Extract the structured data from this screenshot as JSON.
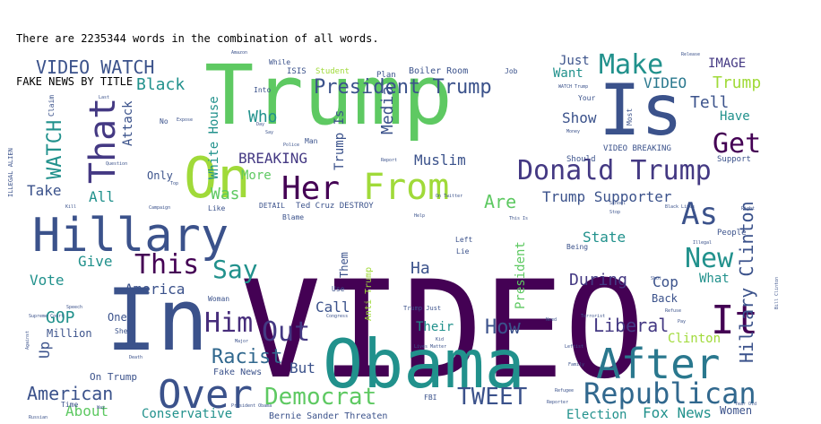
{
  "output": {
    "line1": "There are 2235344 words in the combination of all words.",
    "line2": "FAKE NEWS BY TITLE"
  },
  "wordcloud": {
    "palette": [
      "#440154",
      "#3b528b",
      "#21918c",
      "#5ec962",
      "#a0da39",
      "#fde725"
    ],
    "words": [
      {
        "text": "VIDEO",
        "weight": 100,
        "color": "#440154"
      },
      {
        "text": "Trump",
        "weight": 62,
        "color": "#5ec962"
      },
      {
        "text": "In",
        "weight": 58,
        "color": "#3b528b"
      },
      {
        "text": "Obama",
        "weight": 48,
        "color": "#21918c"
      },
      {
        "text": "Is",
        "weight": 46,
        "color": "#3b528b"
      },
      {
        "text": "On",
        "weight": 40,
        "color": "#a0da39"
      },
      {
        "text": "Hillary",
        "weight": 34,
        "color": "#3b528b"
      },
      {
        "text": "After",
        "weight": 30,
        "color": "#2a788e"
      },
      {
        "text": "Over",
        "weight": 28,
        "color": "#3b528b"
      },
      {
        "text": "That",
        "weight": 28,
        "color": "#443983"
      },
      {
        "text": "From",
        "weight": 26,
        "color": "#a0da39"
      },
      {
        "text": "Donald Trump",
        "weight": 24,
        "color": "#443983"
      },
      {
        "text": "It",
        "weight": 24,
        "color": "#440154"
      },
      {
        "text": "Republican",
        "weight": 22,
        "color": "#31688e"
      },
      {
        "text": "Her",
        "weight": 22,
        "color": "#440154"
      },
      {
        "text": "Democrat",
        "weight": 20,
        "color": "#5ec962"
      },
      {
        "text": "Make",
        "weight": 20,
        "color": "#21918c"
      },
      {
        "text": "This",
        "weight": 20,
        "color": "#440154"
      },
      {
        "text": "Him",
        "weight": 20,
        "color": "#472d7b"
      },
      {
        "text": "Out",
        "weight": 20,
        "color": "#443983"
      },
      {
        "text": "New",
        "weight": 20,
        "color": "#21918c"
      },
      {
        "text": "As",
        "weight": 20,
        "color": "#3b528b"
      },
      {
        "text": "Get",
        "weight": 20,
        "color": "#440154"
      },
      {
        "text": "TWEET",
        "weight": 19,
        "color": "#3b528b"
      },
      {
        "text": "Say",
        "weight": 18,
        "color": "#21918c"
      },
      {
        "text": "President Trump",
        "weight": 17,
        "color": "#3b528b"
      },
      {
        "text": "Hillary Clinton",
        "weight": 16,
        "color": "#3b528b"
      },
      {
        "text": "VIDEO WATCH",
        "weight": 16,
        "color": "#3b528b"
      },
      {
        "text": "WATCH",
        "weight": 16,
        "color": "#21918c"
      },
      {
        "text": "American",
        "weight": 16,
        "color": "#3b528b"
      },
      {
        "text": "Racist",
        "weight": 15,
        "color": "#31688e"
      },
      {
        "text": "How",
        "weight": 15,
        "color": "#3b528b"
      },
      {
        "text": "Fox News",
        "weight": 12,
        "color": "#21918c"
      },
      {
        "text": "Liberal",
        "weight": 14,
        "color": "#443983"
      },
      {
        "text": "Trump",
        "weight": 13,
        "color": "#a0da39"
      },
      {
        "text": "VIDEO",
        "weight": 13,
        "color": "#2a788e"
      },
      {
        "text": "Media",
        "weight": 13,
        "color": "#3b528b"
      },
      {
        "text": "Was",
        "weight": 13,
        "color": "#5ec962"
      },
      {
        "text": "Are",
        "weight": 13,
        "color": "#5ec962"
      },
      {
        "text": "Tell",
        "weight": 13,
        "color": "#3b528b"
      },
      {
        "text": "IMAGE",
        "weight": 11,
        "color": "#443983"
      },
      {
        "text": "Black",
        "weight": 13,
        "color": "#21918c"
      },
      {
        "text": "BREAKING",
        "weight": 12,
        "color": "#443983"
      },
      {
        "text": "White House",
        "weight": 12,
        "color": "#21918c"
      },
      {
        "text": "Trump Supporter",
        "weight": 12,
        "color": "#3b528b"
      },
      {
        "text": "Muslim",
        "weight": 12,
        "color": "#3b528b"
      },
      {
        "text": "Who",
        "weight": 13,
        "color": "#21918c"
      },
      {
        "text": "More",
        "weight": 12,
        "color": "#5ec962"
      },
      {
        "text": "Call",
        "weight": 12,
        "color": "#3b528b"
      },
      {
        "text": "Up",
        "weight": 12,
        "color": "#3b528b"
      },
      {
        "text": "GOP",
        "weight": 12,
        "color": "#21918c"
      },
      {
        "text": "Vote",
        "weight": 12,
        "color": "#21918c"
      },
      {
        "text": "America",
        "weight": 12,
        "color": "#3b528b"
      },
      {
        "text": "Give",
        "weight": 12,
        "color": "#21918c"
      },
      {
        "text": "Take",
        "weight": 12,
        "color": "#3b528b"
      },
      {
        "text": "All",
        "weight": 12,
        "color": "#21918c"
      },
      {
        "text": "Show",
        "weight": 12,
        "color": "#3b528b"
      },
      {
        "text": "Have",
        "weight": 11,
        "color": "#21918c"
      },
      {
        "text": "Want",
        "weight": 11,
        "color": "#21918c"
      },
      {
        "text": "Just",
        "weight": 11,
        "color": "#3b528b"
      },
      {
        "text": "Ha",
        "weight": 12,
        "color": "#3b528b"
      },
      {
        "text": "State",
        "weight": 11,
        "color": "#21918c"
      },
      {
        "text": "During",
        "weight": 12,
        "color": "#443983"
      },
      {
        "text": "Cop",
        "weight": 12,
        "color": "#3b528b"
      },
      {
        "text": "Clinton",
        "weight": 11,
        "color": "#a0da39"
      },
      {
        "text": "About",
        "weight": 12,
        "color": "#5ec962"
      },
      {
        "text": "Election",
        "weight": 12,
        "color": "#21918c"
      },
      {
        "text": "Conservative",
        "weight": 11,
        "color": "#21918c"
      },
      {
        "text": "Their",
        "weight": 11,
        "color": "#21918c"
      },
      {
        "text": "But",
        "weight": 12,
        "color": "#3b528b"
      },
      {
        "text": "Attack",
        "weight": 11,
        "color": "#3b528b"
      },
      {
        "text": "Trump Is",
        "weight": 11,
        "color": "#3b528b"
      },
      {
        "text": "President",
        "weight": 11,
        "color": "#5ec962"
      },
      {
        "text": "Them",
        "weight": 10,
        "color": "#3b528b"
      },
      {
        "text": "Women",
        "weight": 10,
        "color": "#3b528b"
      },
      {
        "text": "What",
        "weight": 10,
        "color": "#21918c"
      },
      {
        "text": "Back",
        "weight": 10,
        "color": "#3b528b"
      },
      {
        "text": "Only",
        "weight": 10,
        "color": "#3b528b"
      },
      {
        "text": "One",
        "weight": 9,
        "color": "#3b528b"
      },
      {
        "text": "Million",
        "weight": 9,
        "color": "#3b528b"
      },
      {
        "text": "On Trump",
        "weight": 9,
        "color": "#3b528b"
      },
      {
        "text": "Fake News",
        "weight": 8,
        "color": "#3b528b"
      },
      {
        "text": "Anti Trump",
        "weight": 7,
        "color": "#a0da39"
      },
      {
        "text": "Bernie Sander Threaten",
        "weight": 8,
        "color": "#3b528b"
      },
      {
        "text": "VIDEO BREAKING",
        "weight": 7,
        "color": "#3b528b"
      },
      {
        "text": "Boiler Room",
        "weight": 7,
        "color": "#3b528b"
      },
      {
        "text": "Ted Cruz DESTROY",
        "weight": 7,
        "color": "#3b528b"
      },
      {
        "text": "Support",
        "weight": 7,
        "color": "#3b528b"
      },
      {
        "text": "Should",
        "weight": 7,
        "color": "#3b528b"
      },
      {
        "text": "People",
        "weight": 7,
        "color": "#3b528b"
      },
      {
        "text": "Student",
        "weight": 7,
        "color": "#a0da39"
      },
      {
        "text": "ISIS",
        "weight": 7,
        "color": "#3b528b"
      },
      {
        "text": "Plan",
        "weight": 7,
        "color": "#3b528b"
      },
      {
        "text": "Job",
        "weight": 6,
        "color": "#3b528b"
      },
      {
        "text": "While",
        "weight": 6,
        "color": "#3b528b"
      },
      {
        "text": "Into",
        "weight": 6,
        "color": "#3b528b"
      },
      {
        "text": "Like",
        "weight": 6,
        "color": "#3b528b"
      },
      {
        "text": "Blame",
        "weight": 6,
        "color": "#3b528b"
      },
      {
        "text": "DETAIL",
        "weight": 6,
        "color": "#3b528b"
      },
      {
        "text": "Left",
        "weight": 6,
        "color": "#3b528b"
      },
      {
        "text": "Lie",
        "weight": 6,
        "color": "#3b528b"
      },
      {
        "text": "Use",
        "weight": 6,
        "color": "#3b528b"
      },
      {
        "text": "Woman",
        "weight": 6,
        "color": "#3b528b"
      },
      {
        "text": "Man",
        "weight": 6,
        "color": "#3b528b"
      },
      {
        "text": "Being",
        "weight": 6,
        "color": "#3b528b"
      },
      {
        "text": "Your",
        "weight": 6,
        "color": "#3b528b"
      },
      {
        "text": "Most",
        "weight": 6,
        "color": "#3b528b"
      },
      {
        "text": "Claim",
        "weight": 6,
        "color": "#3b528b"
      },
      {
        "text": "Time",
        "weight": 6,
        "color": "#3b528b"
      },
      {
        "text": "FBI",
        "weight": 6,
        "color": "#3b528b"
      },
      {
        "text": "She",
        "weight": 6,
        "color": "#3b528b"
      },
      {
        "text": "No",
        "weight": 6,
        "color": "#3b528b"
      },
      {
        "text": "ILLEGAL ALIEN",
        "weight": 5,
        "color": "#3b528b"
      },
      {
        "text": "Trump Just",
        "weight": 5,
        "color": "#3b528b"
      },
      {
        "text": "Release",
        "weight": 4,
        "color": "#3b528b"
      },
      {
        "text": "Question",
        "weight": 4,
        "color": "#3b528b"
      },
      {
        "text": "Campaign",
        "weight": 4,
        "color": "#3b528b"
      },
      {
        "text": "President Obama",
        "weight": 4,
        "color": "#3b528b"
      },
      {
        "text": "Supreme Court",
        "weight": 4,
        "color": "#3b528b"
      },
      {
        "text": "Russian",
        "weight": 4,
        "color": "#3b528b"
      },
      {
        "text": "Congress",
        "weight": 4,
        "color": "#3b528b"
      },
      {
        "text": "Terrorist",
        "weight": 4,
        "color": "#3b528b"
      },
      {
        "text": "Black Lives",
        "weight": 4,
        "color": "#3b528b"
      },
      {
        "text": "Year Old",
        "weight": 4,
        "color": "#3b528b"
      },
      {
        "text": "Illegal",
        "weight": 4,
        "color": "#3b528b"
      },
      {
        "text": "School",
        "weight": 4,
        "color": "#3b528b"
      },
      {
        "text": "Lives Matter",
        "weight": 4,
        "color": "#3b528b"
      },
      {
        "text": "Police",
        "weight": 4,
        "color": "#3b528b"
      },
      {
        "text": "On Twitter",
        "weight": 4,
        "color": "#3b528b"
      },
      {
        "text": "This Is",
        "weight": 4,
        "color": "#3b528b"
      },
      {
        "text": "Against",
        "weight": 4,
        "color": "#3b528b"
      },
      {
        "text": "Speech",
        "weight": 4,
        "color": "#3b528b"
      },
      {
        "text": "Death",
        "weight": 4,
        "color": "#3b528b"
      },
      {
        "text": "Kill",
        "weight": 4,
        "color": "#3b528b"
      },
      {
        "text": "WATCH Trump",
        "weight": 4,
        "color": "#3b528b"
      },
      {
        "text": "Report",
        "weight": 4,
        "color": "#3b528b"
      },
      {
        "text": "Family",
        "weight": 4,
        "color": "#3b528b"
      },
      {
        "text": "Expose",
        "weight": 4,
        "color": "#3b528b"
      },
      {
        "text": "Stop",
        "weight": 4,
        "color": "#3b528b"
      },
      {
        "text": "Right",
        "weight": 4,
        "color": "#3b528b"
      },
      {
        "text": "Pay",
        "weight": 4,
        "color": "#3b528b"
      },
      {
        "text": "Help",
        "weight": 4,
        "color": "#3b528b"
      },
      {
        "text": "Refugee",
        "weight": 4,
        "color": "#3b528b"
      },
      {
        "text": "Money",
        "weight": 4,
        "color": "#3b528b"
      },
      {
        "text": "Leftist",
        "weight": 4,
        "color": "#3b528b"
      },
      {
        "text": "Major",
        "weight": 4,
        "color": "#3b528b"
      },
      {
        "text": "Reporter",
        "weight": 4,
        "color": "#3b528b"
      },
      {
        "text": "Bill Clinton",
        "weight": 4,
        "color": "#3b528b"
      },
      {
        "text": "Say",
        "weight": 4,
        "color": "#3b528b"
      },
      {
        "text": "Last",
        "weight": 4,
        "color": "#3b528b"
      },
      {
        "text": "Day",
        "weight": 4,
        "color": "#3b528b"
      },
      {
        "text": "Kid",
        "weight": 4,
        "color": "#3b528b"
      },
      {
        "text": "Way",
        "weight": 4,
        "color": "#3b528b"
      },
      {
        "text": "Russia",
        "weight": 4,
        "color": "#3b528b"
      },
      {
        "text": "Amazon",
        "weight": 4,
        "color": "#3b528b"
      },
      {
        "text": "Top",
        "weight": 4,
        "color": "#3b528b"
      },
      {
        "text": "Need",
        "weight": 4,
        "color": "#3b528b"
      },
      {
        "text": "Shot",
        "weight": 4,
        "color": "#3b528b"
      },
      {
        "text": "Refuse",
        "weight": 4,
        "color": "#3b528b"
      }
    ]
  }
}
